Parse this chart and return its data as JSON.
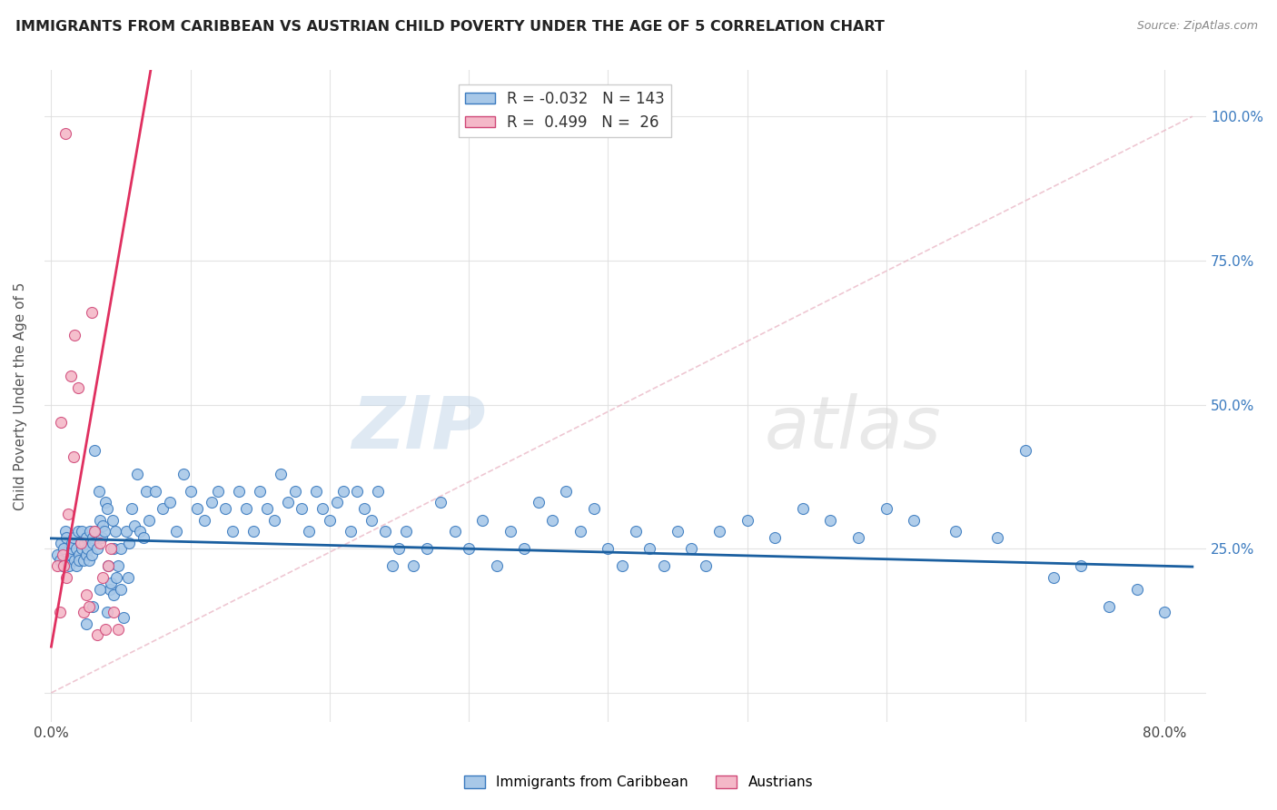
{
  "title": "IMMIGRANTS FROM CARIBBEAN VS AUSTRIAN CHILD POVERTY UNDER THE AGE OF 5 CORRELATION CHART",
  "source": "Source: ZipAtlas.com",
  "ylabel": "Child Poverty Under the Age of 5",
  "xlim": [
    -0.005,
    0.83
  ],
  "ylim": [
    -0.05,
    1.08
  ],
  "legend_blue_r": "-0.032",
  "legend_blue_n": "143",
  "legend_pink_r": "0.499",
  "legend_pink_n": "26",
  "blue_color": "#a8c8e8",
  "pink_color": "#f4b8c8",
  "blue_edge_color": "#3a7abf",
  "pink_edge_color": "#d04878",
  "blue_line_color": "#1a5fa0",
  "pink_line_color": "#e03060",
  "blue_scatter_x": [
    0.004,
    0.006,
    0.007,
    0.008,
    0.009,
    0.01,
    0.011,
    0.012,
    0.013,
    0.014,
    0.015,
    0.015,
    0.016,
    0.017,
    0.018,
    0.018,
    0.019,
    0.02,
    0.02,
    0.021,
    0.022,
    0.022,
    0.023,
    0.024,
    0.025,
    0.025,
    0.026,
    0.027,
    0.028,
    0.029,
    0.03,
    0.03,
    0.031,
    0.032,
    0.033,
    0.034,
    0.035,
    0.036,
    0.037,
    0.038,
    0.039,
    0.04,
    0.041,
    0.042,
    0.043,
    0.044,
    0.045,
    0.046,
    0.047,
    0.048,
    0.05,
    0.052,
    0.054,
    0.056,
    0.058,
    0.06,
    0.062,
    0.064,
    0.066,
    0.068,
    0.07,
    0.075,
    0.08,
    0.085,
    0.09,
    0.095,
    0.1,
    0.105,
    0.11,
    0.115,
    0.12,
    0.125,
    0.13,
    0.135,
    0.14,
    0.145,
    0.15,
    0.155,
    0.16,
    0.165,
    0.17,
    0.175,
    0.18,
    0.185,
    0.19,
    0.195,
    0.2,
    0.205,
    0.21,
    0.215,
    0.22,
    0.225,
    0.23,
    0.235,
    0.24,
    0.245,
    0.25,
    0.255,
    0.26,
    0.27,
    0.28,
    0.29,
    0.3,
    0.31,
    0.32,
    0.33,
    0.34,
    0.35,
    0.36,
    0.37,
    0.38,
    0.39,
    0.4,
    0.41,
    0.42,
    0.43,
    0.44,
    0.45,
    0.46,
    0.47,
    0.48,
    0.5,
    0.52,
    0.54,
    0.56,
    0.58,
    0.6,
    0.62,
    0.65,
    0.68,
    0.7,
    0.72,
    0.74,
    0.76,
    0.78,
    0.8,
    0.025,
    0.03,
    0.035,
    0.04,
    0.045,
    0.05,
    0.055
  ],
  "blue_scatter_y": [
    0.24,
    0.23,
    0.26,
    0.22,
    0.25,
    0.28,
    0.27,
    0.23,
    0.22,
    0.24,
    0.25,
    0.26,
    0.27,
    0.23,
    0.22,
    0.25,
    0.28,
    0.24,
    0.23,
    0.26,
    0.28,
    0.25,
    0.23,
    0.26,
    0.24,
    0.27,
    0.25,
    0.23,
    0.28,
    0.24,
    0.27,
    0.26,
    0.42,
    0.28,
    0.25,
    0.35,
    0.3,
    0.27,
    0.29,
    0.28,
    0.33,
    0.32,
    0.22,
    0.18,
    0.19,
    0.3,
    0.25,
    0.28,
    0.2,
    0.22,
    0.25,
    0.13,
    0.28,
    0.26,
    0.32,
    0.29,
    0.38,
    0.28,
    0.27,
    0.35,
    0.3,
    0.35,
    0.32,
    0.33,
    0.28,
    0.38,
    0.35,
    0.32,
    0.3,
    0.33,
    0.35,
    0.32,
    0.28,
    0.35,
    0.32,
    0.28,
    0.35,
    0.32,
    0.3,
    0.38,
    0.33,
    0.35,
    0.32,
    0.28,
    0.35,
    0.32,
    0.3,
    0.33,
    0.35,
    0.28,
    0.35,
    0.32,
    0.3,
    0.35,
    0.28,
    0.22,
    0.25,
    0.28,
    0.22,
    0.25,
    0.33,
    0.28,
    0.25,
    0.3,
    0.22,
    0.28,
    0.25,
    0.33,
    0.3,
    0.35,
    0.28,
    0.32,
    0.25,
    0.22,
    0.28,
    0.25,
    0.22,
    0.28,
    0.25,
    0.22,
    0.28,
    0.3,
    0.27,
    0.32,
    0.3,
    0.27,
    0.32,
    0.3,
    0.28,
    0.27,
    0.42,
    0.2,
    0.22,
    0.15,
    0.18,
    0.14,
    0.12,
    0.15,
    0.18,
    0.14,
    0.17,
    0.18,
    0.2
  ],
  "pink_scatter_x": [
    0.004,
    0.006,
    0.007,
    0.008,
    0.009,
    0.01,
    0.011,
    0.012,
    0.014,
    0.016,
    0.017,
    0.019,
    0.021,
    0.023,
    0.025,
    0.027,
    0.029,
    0.031,
    0.033,
    0.035,
    0.037,
    0.039,
    0.041,
    0.043,
    0.045,
    0.048
  ],
  "pink_scatter_y": [
    0.22,
    0.14,
    0.47,
    0.24,
    0.22,
    0.97,
    0.2,
    0.31,
    0.55,
    0.41,
    0.62,
    0.53,
    0.26,
    0.14,
    0.17,
    0.15,
    0.66,
    0.28,
    0.1,
    0.26,
    0.2,
    0.11,
    0.22,
    0.25,
    0.14,
    0.11
  ]
}
